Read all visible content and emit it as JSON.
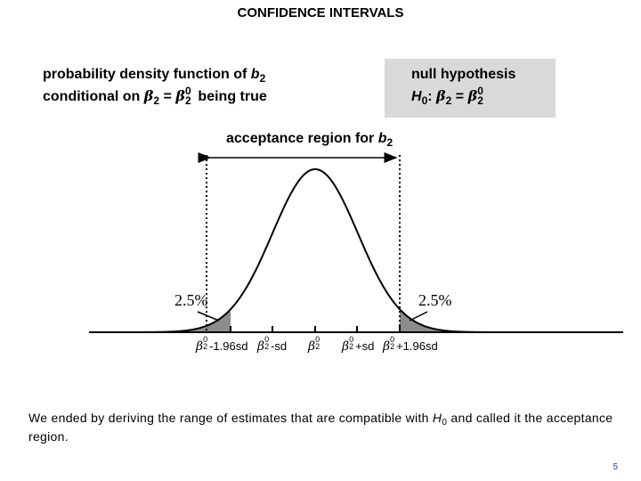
{
  "title": "CONFIDENCE INTERVALS",
  "pdf_label": {
    "line1": "probability density function of",
    "var_b": "b",
    "sub2": "2",
    "line2_prefix": "conditional on",
    "beta": "β",
    "eq": "=",
    "sup0": "0",
    "line2_suffix": "being true"
  },
  "null_hypothesis": {
    "line1": "null hypothesis",
    "H": "H",
    "sub0": "0",
    "colon": ":",
    "beta": "β",
    "sub2": "2",
    "eq": "=",
    "sup0": "0"
  },
  "acceptance": {
    "text": "acceptance region for",
    "var_b": "b",
    "sub2": "2"
  },
  "tails": {
    "left": "2.5%",
    "right": "2.5%"
  },
  "tick_labels": {
    "beta": "β",
    "sup0": "0",
    "sub2": "2",
    "minus196": "-1.96sd",
    "minus1": "-sd",
    "plus1": "+sd",
    "plus196": "+1.96sd"
  },
  "footer": {
    "prefix": "We ended by deriving the range of estimates that are compatible with",
    "H": "H",
    "sub0": "0",
    "suffix": "and called it the acceptance region."
  },
  "page_number": "5",
  "colors": {
    "tail_fill": "#8c8c8c",
    "box_fill": "#d9d9d9",
    "page_number": "#1f3fbf"
  }
}
